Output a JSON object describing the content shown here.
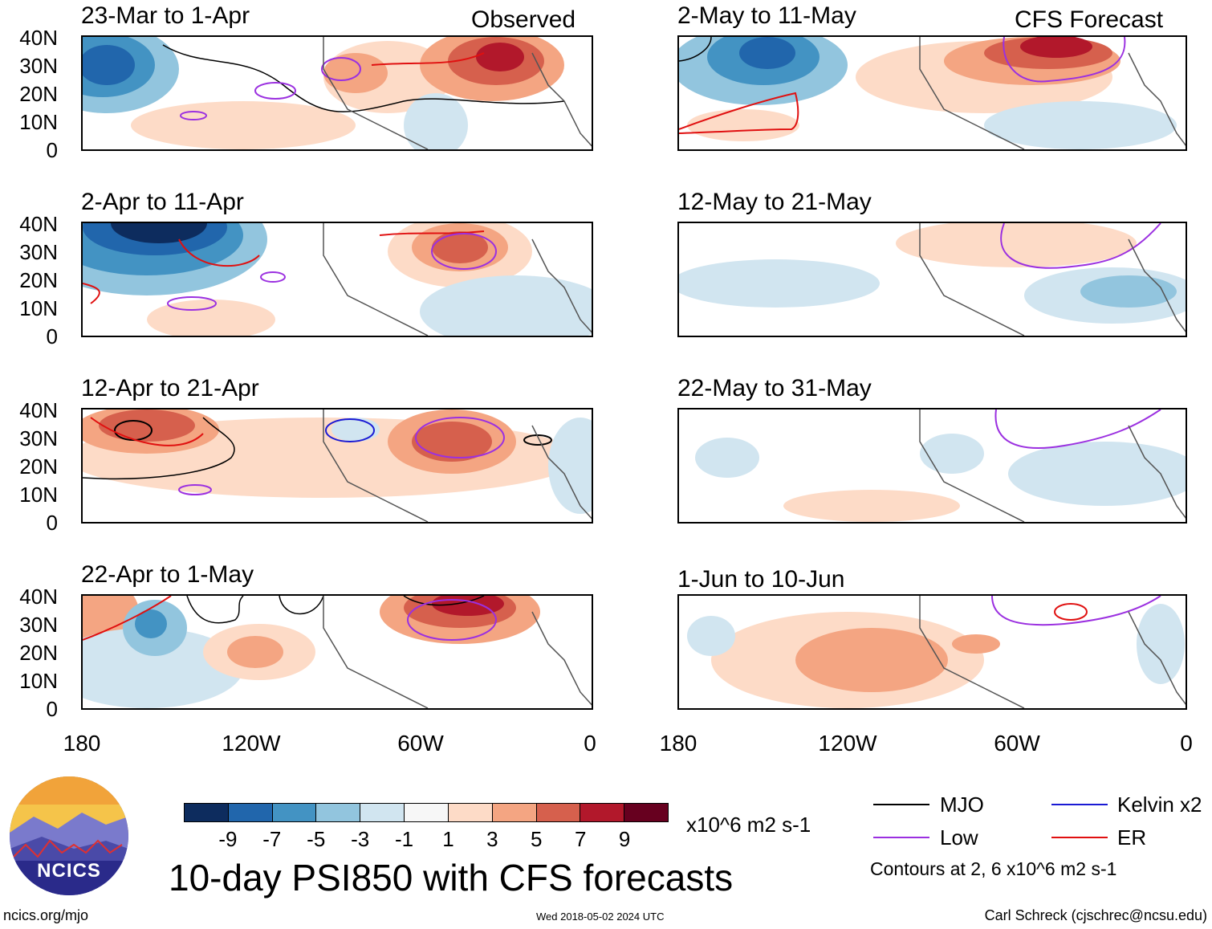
{
  "panels": [
    {
      "title": "23-Mar to 1-Apr",
      "tag": "Observed"
    },
    {
      "title": "2-Apr to 11-Apr",
      "tag": ""
    },
    {
      "title": "12-Apr to 21-Apr",
      "tag": ""
    },
    {
      "title": "22-Apr to 1-May",
      "tag": ""
    },
    {
      "title": "2-May to 11-May",
      "tag": "CFS Forecast"
    },
    {
      "title": "12-May to 21-May",
      "tag": ""
    },
    {
      "title": "22-May to 31-May",
      "tag": ""
    },
    {
      "title": "1-Jun to 10-Jun",
      "tag": ""
    }
  ],
  "lat_labels": [
    "40N",
    "30N",
    "20N",
    "10N",
    "0"
  ],
  "lon_labels": [
    "180",
    "120W",
    "60W",
    "0"
  ],
  "colorbar": {
    "colors": [
      "#0d2c5e",
      "#2166ac",
      "#4393c3",
      "#92c5de",
      "#d1e5f0",
      "#f7f7f7",
      "#fddbc7",
      "#f4a582",
      "#d6604d",
      "#b2182b",
      "#67001f"
    ],
    "labels": [
      "-9",
      "-7",
      "-5",
      "-3",
      "-1",
      "1",
      "3",
      "5",
      "7",
      "9"
    ],
    "units": "x10^6 m2 s-1"
  },
  "legend": {
    "mjo": "MJO",
    "low": "Low",
    "kelvin": "Kelvin x2",
    "er": "ER",
    "contours": "Contours at 2, 6 x10^6 m2 s-1",
    "colors": {
      "mjo": "#000000",
      "low": "#9b30e0",
      "kelvin": "#1a1ad4",
      "er": "#e01010"
    }
  },
  "main_title": "10-day PSI850 with CFS forecasts",
  "logo_text": "NCICS",
  "footer": {
    "left": "ncics.org/mjo",
    "center": "Wed 2018-05-02 2024 UTC",
    "right": "Carl Schreck (cjschrec@ncsu.edu)"
  }
}
